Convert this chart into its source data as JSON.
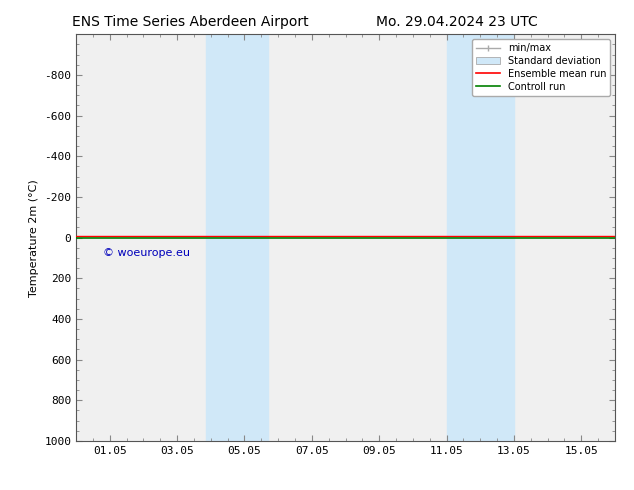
{
  "title_left": "ENS Time Series Aberdeen Airport",
  "title_right": "Mo. 29.04.2024 23 UTC",
  "ylabel": "Temperature 2m (°C)",
  "xlim": [
    0,
    16
  ],
  "ylim": [
    1000,
    -1000
  ],
  "yticks": [
    -800,
    -600,
    -400,
    -200,
    0,
    200,
    400,
    600,
    800,
    1000
  ],
  "xtick_labels": [
    "01.05",
    "03.05",
    "05.05",
    "07.05",
    "09.05",
    "11.05",
    "13.05",
    "15.05"
  ],
  "xtick_positions": [
    1,
    3,
    5,
    7,
    9,
    11,
    13,
    15
  ],
  "shaded_regions": [
    [
      3.85,
      4.5
    ],
    [
      4.5,
      5.7
    ],
    [
      11.0,
      11.7
    ],
    [
      11.7,
      13.0
    ]
  ],
  "shaded_color": "#d0e8f8",
  "line_green_color": "#008000",
  "line_red_color": "#ff0000",
  "watermark_text": "© woeurope.eu",
  "watermark_color": "#0000bb",
  "legend_entries": [
    "min/max",
    "Standard deviation",
    "Ensemble mean run",
    "Controll run"
  ],
  "bg_color": "#ffffff",
  "plot_bg_color": "#f0f0f0",
  "title_fontsize": 10,
  "axis_fontsize": 8,
  "tick_fontsize": 8
}
